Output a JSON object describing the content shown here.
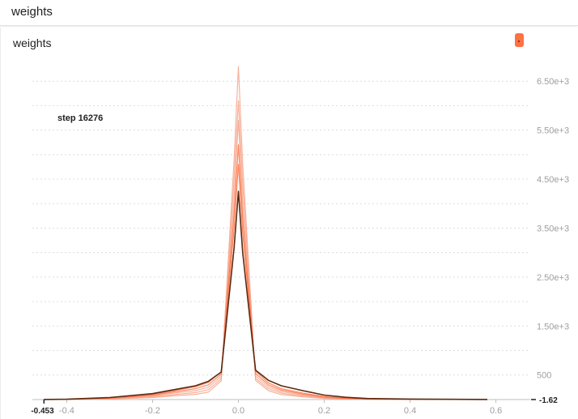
{
  "header": {
    "title": "weights"
  },
  "card": {
    "title": "weights"
  },
  "legend_swatch_color": "#ff7043",
  "chart_data": {
    "type": "line",
    "title": "weights",
    "hover_label": "step 16276",
    "x_axis": {
      "ticks": [
        "-0.4",
        "-0.2",
        "0.0",
        "0.2",
        "0.4",
        "0.6"
      ],
      "tick_values": [
        -0.4,
        -0.2,
        0.0,
        0.2,
        0.4,
        0.6
      ],
      "range": [
        -0.48,
        0.68
      ]
    },
    "y_axis": {
      "ticks": [
        "500",
        "1.50e+3",
        "2.50e+3",
        "3.50e+3",
        "4.50e+3",
        "5.50e+3",
        "6.50e+3"
      ],
      "tick_values": [
        500,
        1500,
        2500,
        3500,
        4500,
        5500,
        6500
      ],
      "range": [
        -1.62,
        7000
      ],
      "position": "right",
      "grid": true
    },
    "x_marker": "-0.453",
    "y_marker": "-1.62",
    "highlight_step": 16276,
    "colors": {
      "dark": "#5a2a12",
      "mid": "#ff7043",
      "light": "#f4a58a"
    },
    "x": [
      -0.453,
      -0.4,
      -0.3,
      -0.2,
      -0.15,
      -0.1,
      -0.07,
      -0.04,
      -0.01,
      0.0,
      0.01,
      0.04,
      0.07,
      0.1,
      0.15,
      0.2,
      0.25,
      0.3,
      0.4,
      0.5,
      0.58
    ],
    "series": [
      {
        "values": [
          0,
          5,
          40,
          120,
          200,
          280,
          370,
          560,
          3100,
          4250,
          3000,
          600,
          390,
          280,
          180,
          90,
          45,
          20,
          8,
          3,
          0
        ],
        "step": 16276
      },
      {
        "values": [
          0,
          4,
          30,
          100,
          180,
          260,
          350,
          570,
          3500,
          4800,
          3400,
          580,
          340,
          220,
          130,
          60,
          28,
          12,
          5,
          2,
          0
        ]
      },
      {
        "values": [
          0,
          3,
          25,
          85,
          155,
          220,
          300,
          520,
          3800,
          5200,
          3700,
          530,
          300,
          190,
          110,
          50,
          22,
          9,
          4,
          1,
          0
        ]
      },
      {
        "values": [
          0,
          2,
          20,
          70,
          130,
          180,
          250,
          470,
          4100,
          5700,
          4000,
          480,
          260,
          160,
          90,
          40,
          17,
          7,
          3,
          1,
          0
        ]
      },
      {
        "values": [
          0,
          2,
          15,
          55,
          100,
          140,
          200,
          420,
          4500,
          6100,
          4400,
          430,
          220,
          130,
          70,
          30,
          12,
          5,
          2,
          0,
          0
        ]
      },
      {
        "values": [
          0,
          1,
          10,
          40,
          75,
          105,
          150,
          380,
          4900,
          6800,
          4800,
          390,
          180,
          100,
          55,
          22,
          8,
          3,
          1,
          0,
          0
        ]
      }
    ]
  }
}
